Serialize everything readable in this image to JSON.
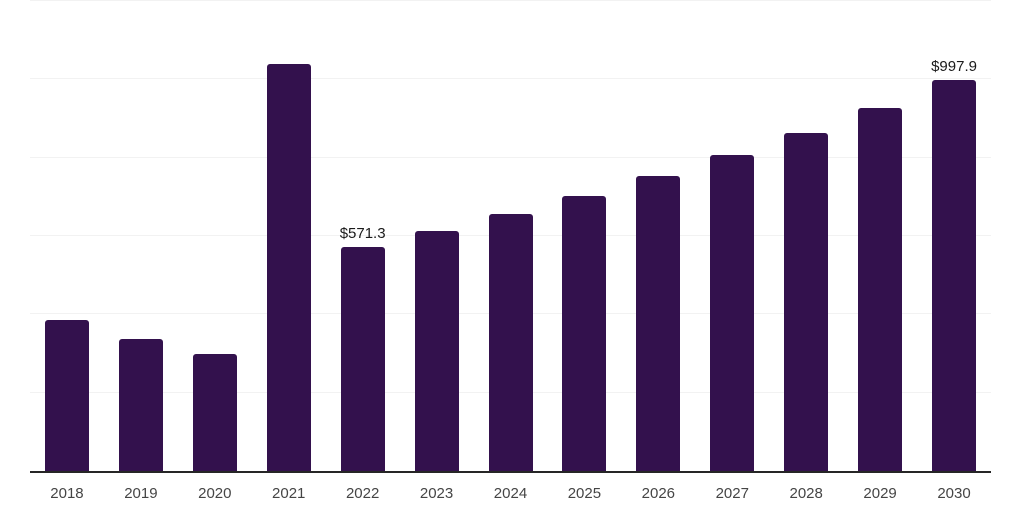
{
  "chart_data": {
    "type": "bar",
    "categories": [
      "2018",
      "2019",
      "2020",
      "2021",
      "2022",
      "2023",
      "2024",
      "2025",
      "2026",
      "2027",
      "2028",
      "2029",
      "2030"
    ],
    "values": [
      385,
      336,
      300,
      1040,
      571.3,
      612,
      657,
      703,
      752,
      806,
      864,
      927,
      997.9
    ],
    "value_labels": [
      "",
      "",
      "",
      "",
      "$571.3",
      "",
      "",
      "",
      "",
      "",
      "",
      "",
      "$997.9"
    ],
    "title": "",
    "xlabel": "",
    "ylabel": "",
    "ylim": [
      0,
      1200
    ],
    "gridline_step": 200,
    "grid": true,
    "legend": false,
    "y_tick_labels_visible": false,
    "colors": {
      "bar": "#33114d",
      "gridline": "#f2f2f2",
      "axis_line": "#262626",
      "tick_label": "#454545",
      "value_label": "#1a1a1a"
    }
  }
}
